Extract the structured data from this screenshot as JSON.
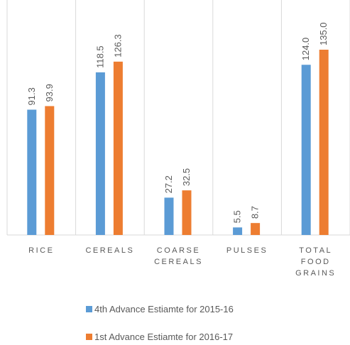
{
  "chart_data": {
    "type": "bar",
    "categories": [
      "RICE",
      "CEREALS",
      "COARSE CEREALS",
      "PULSES",
      "TOTAL FOOD GRAINS"
    ],
    "series": [
      {
        "name": "4th Advance Estiamte for 2015-16",
        "color": "#5b9bd5",
        "values": [
          91.3,
          118.5,
          27.2,
          5.5,
          124.0
        ],
        "value_labels": [
          "91.3",
          "118.5",
          "27.2",
          "5.5",
          "124.0"
        ]
      },
      {
        "name": "1st Advance Estiamte for 2016-17",
        "color": "#ed7d31",
        "values": [
          93.9,
          126.3,
          32.5,
          8.7,
          135.0
        ],
        "value_labels": [
          "93.9",
          "126.3",
          "32.5",
          "8.7",
          "135.0"
        ]
      }
    ]
  }
}
